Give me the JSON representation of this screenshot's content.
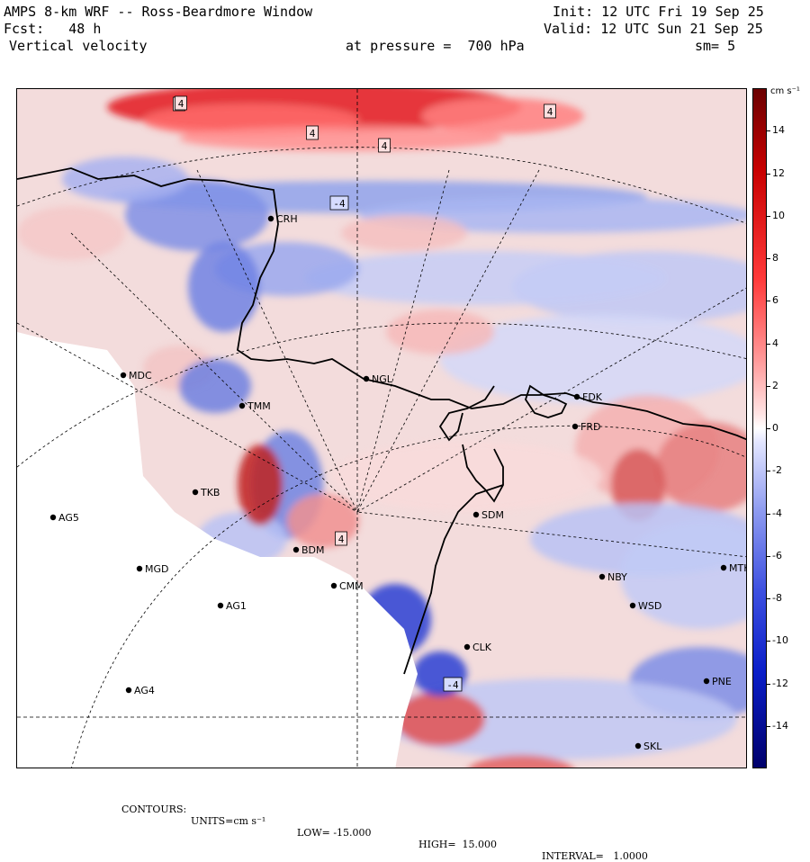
{
  "header": {
    "model_title": "AMPS 8-km WRF -- Ross-Beardmore Window",
    "init_time": "Init: 12 UTC Fri 19 Sep 25",
    "forecast": "Fcst:   48 h",
    "valid_time": "Valid: 12 UTC Sun 21 Sep 25",
    "field": "Vertical velocity",
    "level": "at pressure =  700 hPa",
    "smoothing": "sm= 5"
  },
  "colorbar": {
    "units_label": "cm s⁻¹",
    "ticks": [
      "14",
      "12",
      "10",
      "8",
      "6",
      "4",
      "2",
      "0",
      "-2",
      "-4",
      "-6",
      "-8",
      "-10",
      "-12",
      "-14"
    ],
    "tick_values": [
      14,
      12,
      10,
      8,
      6,
      4,
      2,
      0,
      -2,
      -4,
      -6,
      -8,
      -10,
      -12,
      -14
    ],
    "range": [
      -16,
      16
    ],
    "positive_color": "#d7191c",
    "negative_color": "#1f3fd0",
    "zero_color": "#ffffff"
  },
  "stations": [
    {
      "id": "CRH"
    },
    {
      "id": "MDC"
    },
    {
      "id": "NGL"
    },
    {
      "id": "FDK"
    },
    {
      "id": "FRD"
    },
    {
      "id": "TMM"
    },
    {
      "id": "AG5"
    },
    {
      "id": "TKB"
    },
    {
      "id": "SDM"
    },
    {
      "id": "MGD"
    },
    {
      "id": "BDM"
    },
    {
      "id": "NBY"
    },
    {
      "id": "MTK"
    },
    {
      "id": "AG1"
    },
    {
      "id": "CMM"
    },
    {
      "id": "WSD"
    },
    {
      "id": "AG4"
    },
    {
      "id": "PNE"
    },
    {
      "id": "CLK"
    },
    {
      "id": "SKL"
    }
  ],
  "contour_labels": [
    "4",
    "4",
    "4",
    "4",
    "4",
    "-4",
    "-4",
    "4"
  ],
  "footer": {
    "contours": "CONTOURS:",
    "units": "UNITS=cm s⁻¹",
    "low": "LOW= -15.000",
    "high": "HIGH=  15.000",
    "interval": "INTERVAL=   1.0000"
  }
}
